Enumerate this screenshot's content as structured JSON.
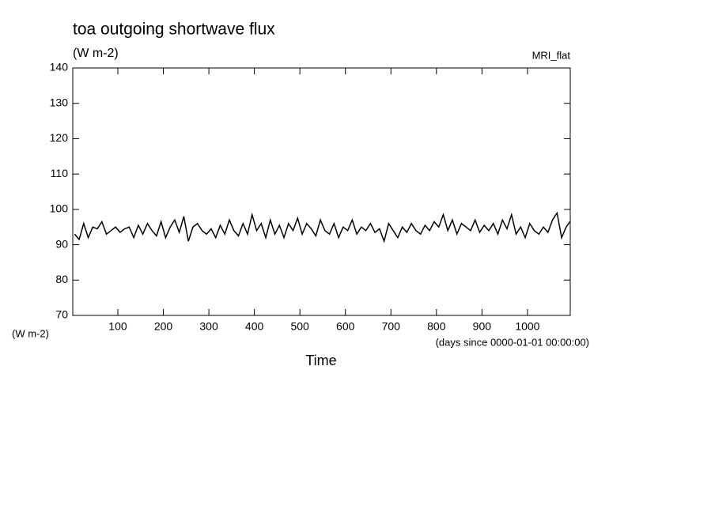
{
  "chart_data": {
    "type": "line",
    "title": "toa outgoing shortwave flux",
    "units": "(W m-2)",
    "dataset": "MRI_flat",
    "y_label": "(W m-2)",
    "x_units": "(days since 0000-01-01 00:00:00)",
    "x_label": "Time",
    "color": "#000000",
    "xlim": [
      1,
      1094
    ],
    "ylim": [
      70,
      140
    ],
    "xticks": [
      100,
      200,
      300,
      400,
      500,
      600,
      700,
      800,
      900,
      1000
    ],
    "yticks": [
      70,
      80,
      90,
      100,
      110,
      120,
      130,
      140
    ],
    "x": [
      5,
      15,
      25,
      35,
      45,
      55,
      65,
      75,
      85,
      95,
      105,
      115,
      125,
      135,
      145,
      155,
      165,
      175,
      185,
      195,
      205,
      215,
      225,
      235,
      245,
      255,
      265,
      275,
      285,
      295,
      305,
      315,
      325,
      335,
      345,
      355,
      365,
      375,
      385,
      395,
      405,
      415,
      425,
      435,
      445,
      455,
      465,
      475,
      485,
      495,
      505,
      515,
      525,
      535,
      545,
      555,
      565,
      575,
      585,
      595,
      605,
      615,
      625,
      635,
      645,
      655,
      665,
      675,
      685,
      695,
      705,
      715,
      725,
      735,
      745,
      755,
      765,
      775,
      785,
      795,
      805,
      815,
      825,
      835,
      845,
      855,
      865,
      875,
      885,
      895,
      905,
      915,
      925,
      935,
      945,
      955,
      965,
      975,
      985,
      995,
      1005,
      1015,
      1025,
      1035,
      1045,
      1055,
      1065,
      1075,
      1085,
      1093
    ],
    "values": [
      93,
      91.5,
      96,
      92,
      95,
      94.5,
      96.5,
      93,
      94,
      95,
      93.5,
      94.5,
      95,
      92,
      95.5,
      93,
      96,
      94,
      92.5,
      96.5,
      92,
      95,
      97,
      93.5,
      98,
      91,
      95,
      96,
      94,
      93,
      94.5,
      92,
      95.5,
      93,
      97,
      94,
      92.5,
      96,
      93,
      98.5,
      94,
      96,
      92,
      97,
      93,
      95.5,
      92,
      96,
      94,
      97.5,
      93,
      96,
      94.5,
      92.5,
      97,
      94,
      93,
      96,
      92,
      95,
      94,
      97,
      93,
      95,
      94,
      96,
      93.5,
      94.5,
      91,
      96,
      94,
      92,
      95,
      93.5,
      96,
      94,
      93,
      95.5,
      94,
      96.5,
      95,
      98.5,
      94,
      97,
      93,
      96,
      95,
      94,
      97,
      93.5,
      95.5,
      94,
      96,
      93,
      97,
      94.5,
      98.5,
      93,
      95,
      92,
      96,
      94,
      93,
      95,
      93.5,
      97,
      99,
      92,
      95,
      96.5
    ]
  }
}
